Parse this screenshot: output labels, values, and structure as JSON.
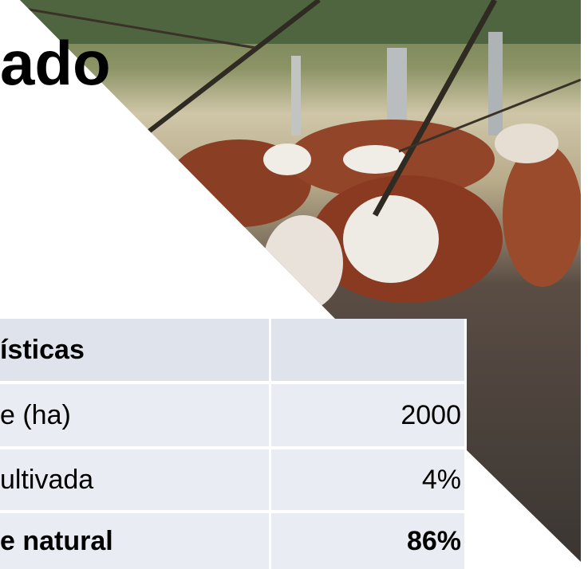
{
  "title": "ado",
  "table": {
    "header": [
      "ísticas"
    ],
    "rows": [
      [
        "e (ha)",
        "2000"
      ],
      [
        "ultivada",
        "4%"
      ],
      [
        "e natural",
        "86%"
      ]
    ]
  }
}
